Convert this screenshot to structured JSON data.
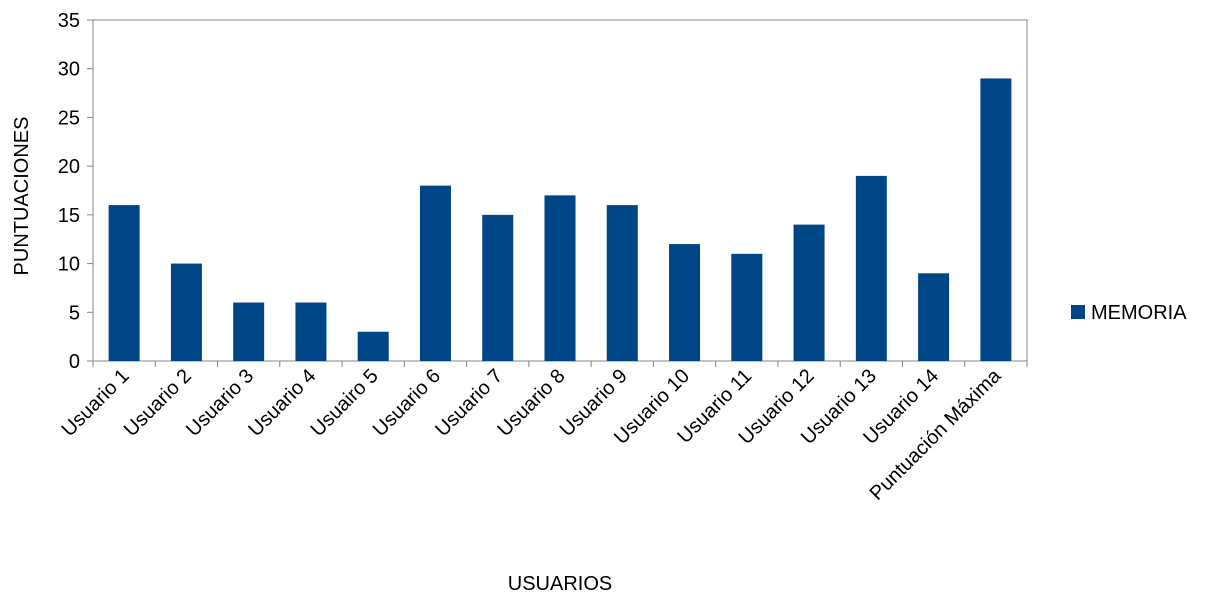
{
  "chart_data": {
    "type": "bar",
    "title": "",
    "xlabel": "USUARIOS",
    "ylabel": "PUNTUACIONES",
    "ylim": [
      0,
      35
    ],
    "yticks": [
      0,
      5,
      10,
      15,
      20,
      25,
      30,
      35
    ],
    "grid": false,
    "legend_position": "right",
    "categories": [
      "Usuario 1",
      "Usuario 2",
      "Usuario 3",
      "Usuario 4",
      "Usuairo 5",
      "Usuario 6",
      "Usuario 7",
      "Usuario 8",
      "Usuario 9",
      "Usuario 10",
      "Usuario 11",
      "Usuario 12",
      "Usuario 13",
      "Usuario 14",
      "Puntuación Máxima"
    ],
    "series": [
      {
        "name": "MEMORIA",
        "color": "#004586",
        "values": [
          16,
          10,
          6,
          6,
          3,
          18,
          15,
          17,
          16,
          12,
          11,
          14,
          19,
          9,
          29
        ]
      }
    ]
  }
}
